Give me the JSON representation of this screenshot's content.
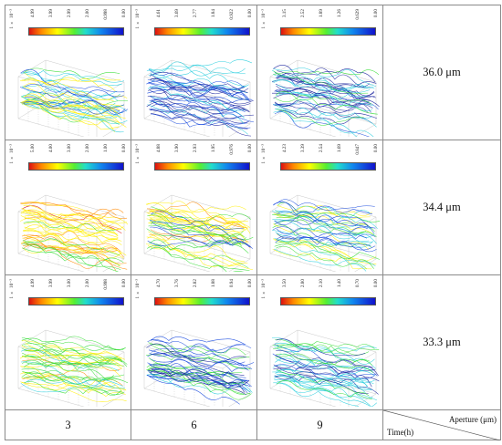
{
  "scale_prefix": "1 × 10⁻³",
  "apertures": [
    "36.0 μm",
    "34.4 μm",
    "33.3 μm"
  ],
  "times": [
    "3",
    "6",
    "9"
  ],
  "header": {
    "aperture_label": "Aperture (μm)",
    "time_label": "Time(h)"
  },
  "panels": [
    [
      "4.99",
      "3.99",
      "2.99",
      "2.00",
      "0.998",
      "0.00"
    ],
    [
      "4.61",
      "3.69",
      "2.77",
      "1.84",
      "0.922",
      "0.00"
    ],
    [
      "3.15",
      "2.52",
      "1.89",
      "1.26",
      "0.629",
      "0.00"
    ],
    [
      "5.00",
      "4.00",
      "3.00",
      "2.00",
      "1.00",
      "0.00"
    ],
    [
      "4.88",
      "3.90",
      "2.93",
      "1.95",
      "0.976",
      "0.00"
    ],
    [
      "4.23",
      "3.39",
      "2.54",
      "1.69",
      "0.847",
      "0.00"
    ],
    [
      "4.99",
      "3.99",
      "3.00",
      "2.00",
      "0.998",
      "0.00"
    ],
    [
      "4.70",
      "3.76",
      "2.82",
      "1.88",
      "0.94",
      "0.00"
    ],
    [
      "3.50",
      "2.80",
      "2.10",
      "1.40",
      "0.70",
      "0.00"
    ]
  ],
  "colors": {
    "red": "#dd1111",
    "orange": "#ff8800",
    "yellow": "#ffee00",
    "green": "#33dd33",
    "cyan": "#22ccdd",
    "blue": "#1144dd",
    "navy": "#111a99"
  }
}
